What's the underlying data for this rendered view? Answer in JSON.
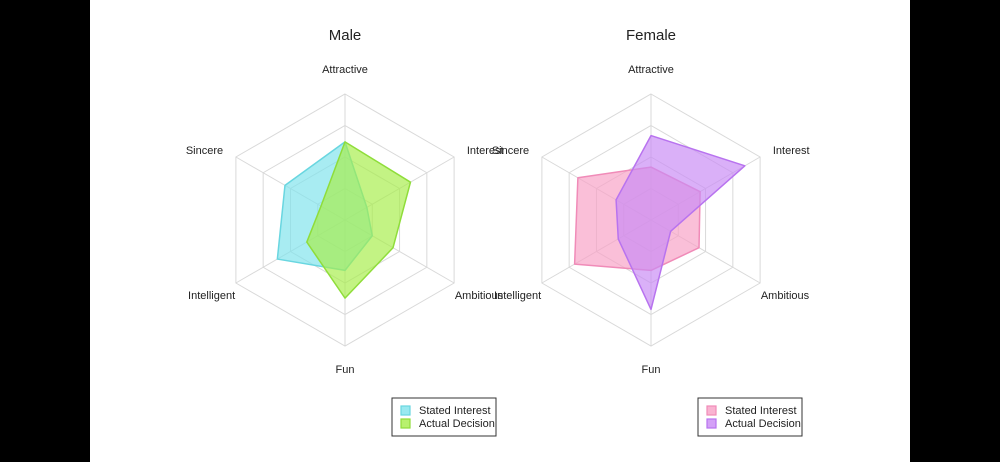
{
  "chart_data": [
    {
      "type": "radar",
      "title": "Male",
      "axes": [
        "Attractive",
        "Interest",
        "Ambitious",
        "Fun",
        "Intelligent",
        "Sincere"
      ],
      "rlim": [
        0,
        1
      ],
      "grid": true,
      "series": [
        {
          "name": "Stated Interest",
          "values": [
            0.62,
            0.2,
            0.25,
            0.4,
            0.62,
            0.55
          ],
          "color": "#7fe3ec",
          "stroke": "#69d6e0"
        },
        {
          "name": "Actual Decision",
          "values": [
            0.62,
            0.6,
            0.44,
            0.62,
            0.35,
            0.22
          ],
          "color": "#a6ee4a",
          "stroke": "#8fdd3a"
        }
      ],
      "legend": {
        "position": "bottom-right"
      }
    },
    {
      "type": "radar",
      "title": "Female",
      "axes": [
        "Attractive",
        "Interest",
        "Ambitious",
        "Fun",
        "Intelligent",
        "Sincere"
      ],
      "rlim": [
        0,
        1
      ],
      "grid": true,
      "series": [
        {
          "name": "Stated Interest",
          "values": [
            0.42,
            0.45,
            0.44,
            0.4,
            0.7,
            0.67
          ],
          "color": "#f7a0c6",
          "stroke": "#f08bb8"
        },
        {
          "name": "Actual Decision",
          "values": [
            0.67,
            0.86,
            0.18,
            0.71,
            0.3,
            0.32
          ],
          "color": "#c98af5",
          "stroke": "#b873ef"
        }
      ],
      "legend": {
        "position": "bottom-right"
      }
    }
  ]
}
